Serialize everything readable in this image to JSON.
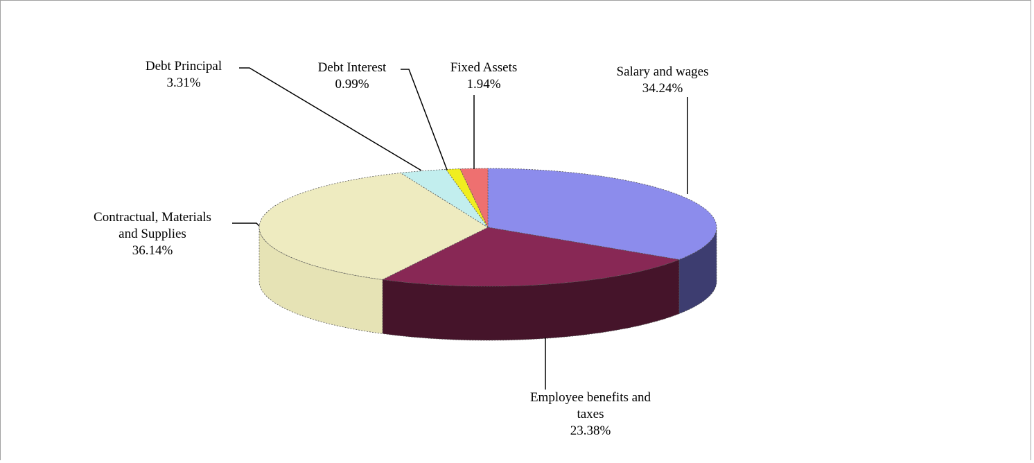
{
  "chart_data": {
    "type": "pie",
    "style": "3d-exploded-tilt",
    "series": [
      {
        "label_lines": [
          "Salary and wages"
        ],
        "pct_text": "34.24%",
        "value": 34.24,
        "color": "#8C8CEC",
        "side_color": "#3D3D70"
      },
      {
        "label_lines": [
          "Employee benefits and",
          "taxes"
        ],
        "pct_text": "23.38%",
        "value": 23.38,
        "color": "#882855",
        "side_color": "#45142A"
      },
      {
        "label_lines": [
          "Contractual, Materials",
          "and Supplies"
        ],
        "pct_text": "36.14%",
        "value": 36.14,
        "color": "#EEEBC0",
        "side_color": "#E6E3B5"
      },
      {
        "label_lines": [
          "Debt Principal"
        ],
        "pct_text": "3.31%",
        "value": 3.31,
        "color": "#C2EEEE",
        "side_color": "#A8DADA"
      },
      {
        "label_lines": [
          "Debt Interest"
        ],
        "pct_text": "0.99%",
        "value": 0.99,
        "color": "#F0EE20",
        "side_color": "#C8C410"
      },
      {
        "label_lines": [
          "Fixed Assets"
        ],
        "pct_text": "1.94%",
        "value": 1.94,
        "color": "#EE7070",
        "side_color": "#B04848"
      }
    ],
    "legend": "none",
    "data_labels": "outside-with-leader-lines"
  }
}
